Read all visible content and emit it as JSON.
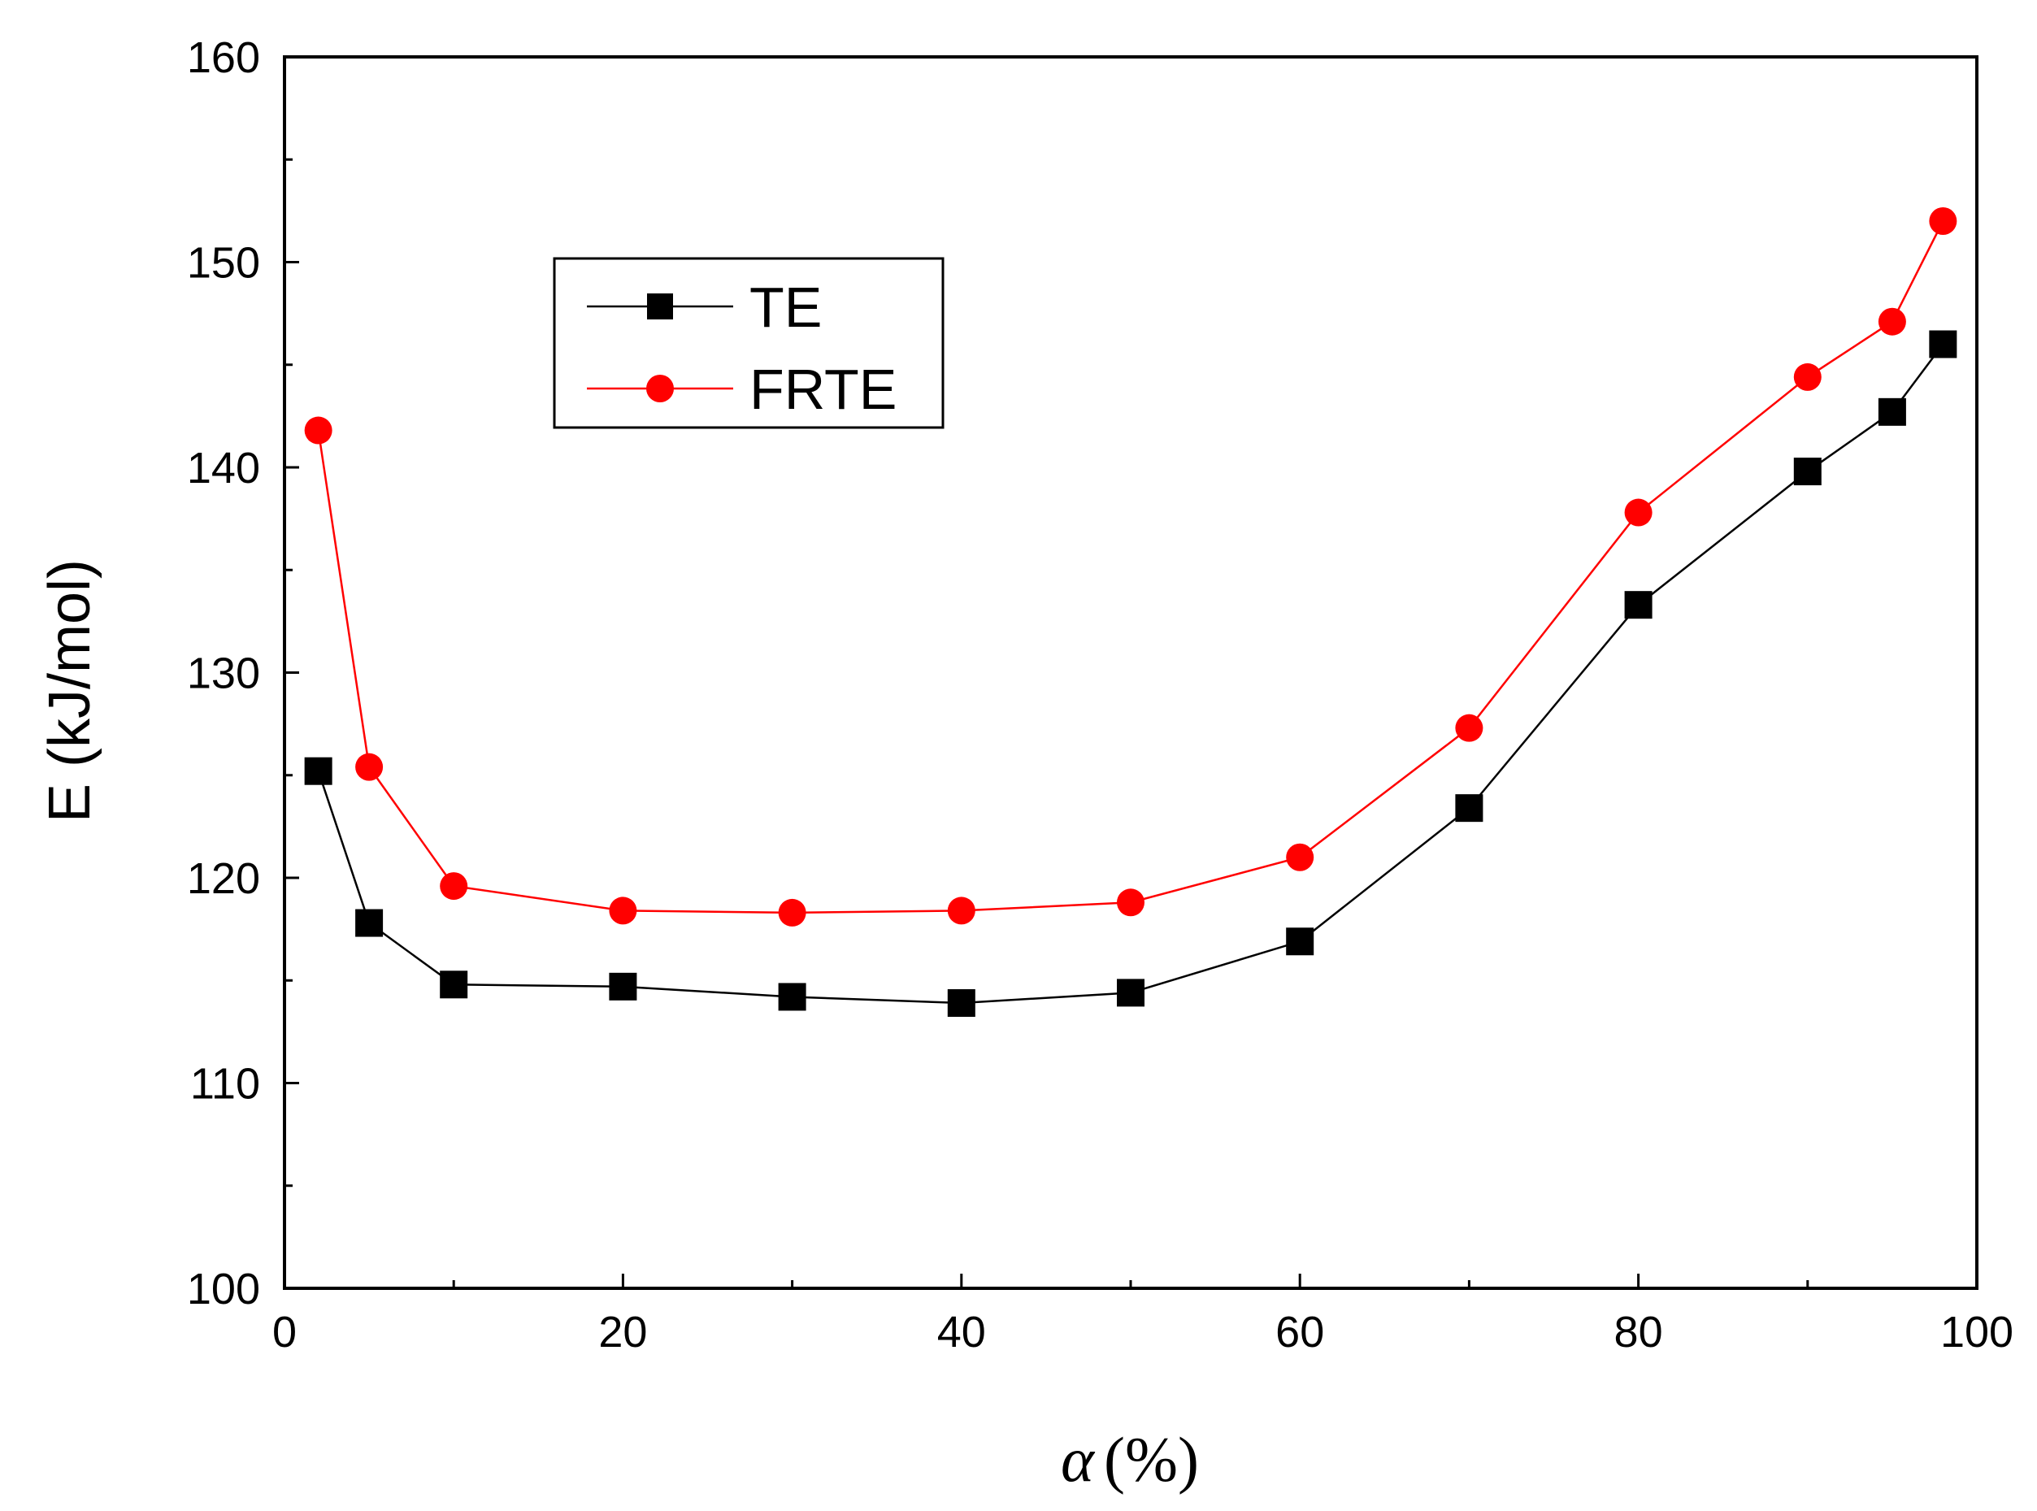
{
  "chart_data": {
    "type": "line",
    "title": "",
    "xlabel_symbol": "α",
    "xlabel_unit": "(%)",
    "ylabel": "E (kJ/mol)",
    "xlim": [
      0,
      100
    ],
    "ylim": [
      100,
      160
    ],
    "x_major_ticks": [
      0,
      20,
      40,
      60,
      80,
      100
    ],
    "x_tick_labels": [
      "0",
      "20",
      "40",
      "60",
      "80",
      "100"
    ],
    "y_major_ticks": [
      100,
      110,
      120,
      130,
      140,
      150,
      160
    ],
    "y_tick_labels": [
      "100",
      "110",
      "120",
      "130",
      "140",
      "150",
      "160"
    ],
    "grid": false,
    "legend_position": "upper-left",
    "x": [
      2,
      5,
      10,
      20,
      30,
      40,
      50,
      60,
      70,
      80,
      90,
      95,
      98
    ],
    "series": [
      {
        "name": "TE",
        "marker": "square",
        "color": "#000000",
        "values": [
          125.2,
          117.8,
          114.8,
          114.7,
          114.2,
          113.9,
          114.4,
          116.9,
          123.4,
          133.3,
          139.8,
          142.7,
          146.0
        ]
      },
      {
        "name": "FRTE",
        "marker": "circle",
        "color": "#ff0000",
        "values": [
          141.8,
          125.4,
          119.6,
          118.4,
          118.3,
          118.4,
          118.8,
          121.0,
          127.3,
          137.8,
          144.4,
          147.1,
          152.0
        ]
      }
    ]
  }
}
